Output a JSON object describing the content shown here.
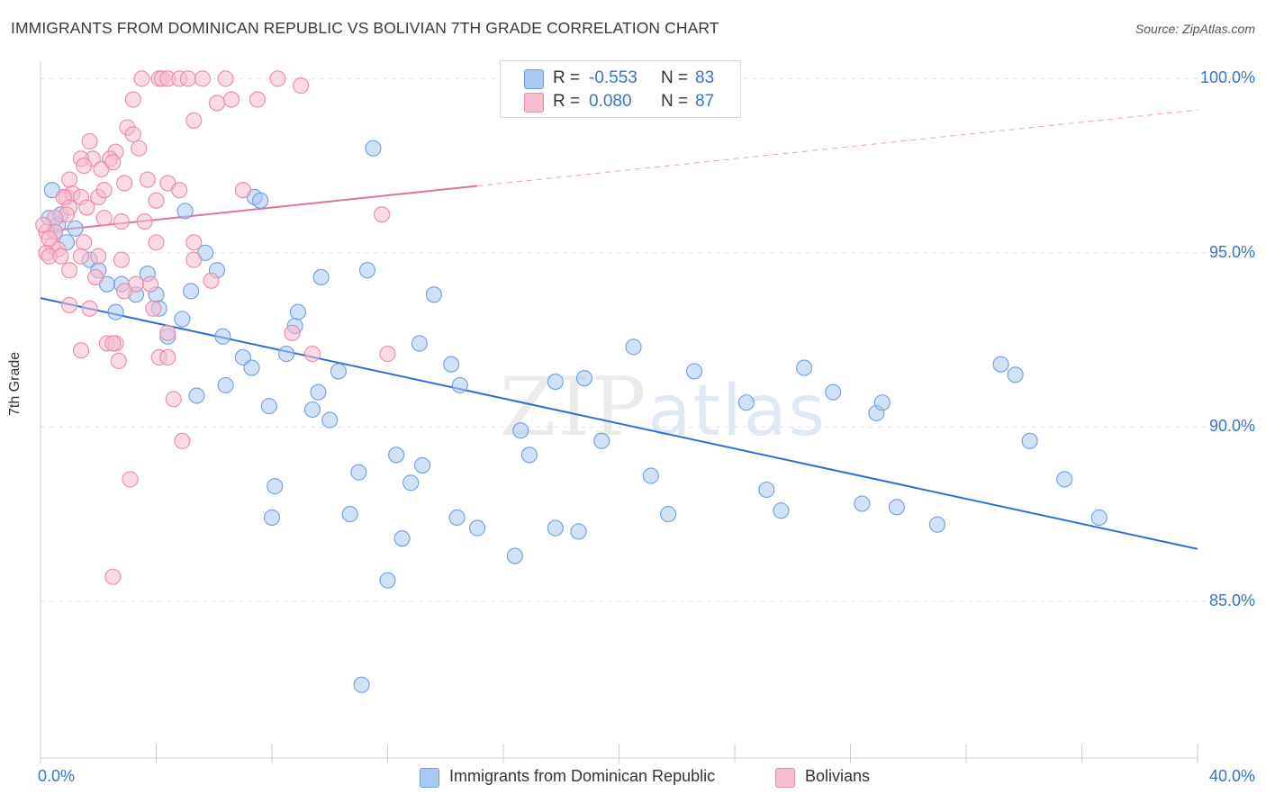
{
  "header": {
    "title": "IMMIGRANTS FROM DOMINICAN REPUBLIC VS BOLIVIAN 7TH GRADE CORRELATION CHART",
    "source": "Source: ZipAtlas.com"
  },
  "watermark": {
    "zip": "ZIP",
    "atlas": "atlas"
  },
  "legend": {
    "rows": [
      {
        "r_label": "R =",
        "r_value": "-0.553",
        "n_label": "N =",
        "n_value": "83",
        "color": "#a9c8f2",
        "stroke": "#6f9fdc"
      },
      {
        "r_label": "R =",
        "r_value": "0.080",
        "n_label": "N =",
        "n_value": "87",
        "color": "#f7bcd0",
        "stroke": "#e88aa9"
      }
    ],
    "bottom": [
      {
        "label": "Immigrants from Dominican Republic",
        "color": "#a9c8f2",
        "stroke": "#6f9fdc"
      },
      {
        "label": "Bolivians",
        "color": "#f7bcd0",
        "stroke": "#e88aa9"
      }
    ]
  },
  "chart_data": {
    "type": "scatter",
    "title": "IMMIGRANTS FROM DOMINICAN REPUBLIC VS BOLIVIAN 7TH GRADE CORRELATION CHART",
    "xlabel": "",
    "ylabel": "7th Grade",
    "xlim": [
      0,
      40
    ],
    "ylim": [
      80.5,
      100.5
    ],
    "x_tick_labels": [
      "0.0%",
      "40.0%"
    ],
    "y_ticks": [
      85,
      90,
      95,
      100
    ],
    "y_tick_labels": [
      "85.0%",
      "90.0%",
      "95.0%",
      "100.0%"
    ],
    "grid": true,
    "legend_position": "top-center",
    "series": [
      {
        "name": "Immigrants from Dominican Republic",
        "color": "#6f9fdc",
        "fill": "#a9c8f2",
        "trend": {
          "x": [
            0,
            40
          ],
          "y": [
            93.7,
            86.5
          ],
          "style": "solid"
        },
        "points": [
          [
            0.4,
            96.8
          ],
          [
            0.3,
            96.0
          ],
          [
            0.6,
            95.8
          ],
          [
            0.7,
            96.1
          ],
          [
            1.2,
            95.7
          ],
          [
            0.9,
            95.3
          ],
          [
            1.7,
            94.8
          ],
          [
            2.0,
            94.5
          ],
          [
            2.3,
            94.1
          ],
          [
            3.7,
            94.4
          ],
          [
            2.8,
            94.1
          ],
          [
            3.3,
            93.8
          ],
          [
            4.0,
            93.8
          ],
          [
            2.6,
            93.3
          ],
          [
            4.1,
            93.4
          ],
          [
            4.9,
            93.1
          ],
          [
            4.4,
            92.6
          ],
          [
            5.7,
            95.0
          ],
          [
            5.0,
            96.2
          ],
          [
            6.1,
            94.5
          ],
          [
            5.2,
            93.9
          ],
          [
            6.3,
            92.6
          ],
          [
            7.0,
            92.0
          ],
          [
            7.3,
            91.7
          ],
          [
            6.4,
            91.2
          ],
          [
            5.4,
            90.9
          ],
          [
            7.9,
            90.6
          ],
          [
            7.4,
            96.6
          ],
          [
            7.6,
            96.5
          ],
          [
            9.7,
            94.3
          ],
          [
            8.9,
            93.3
          ],
          [
            8.8,
            92.9
          ],
          [
            8.5,
            92.1
          ],
          [
            10.3,
            91.6
          ],
          [
            9.6,
            91.0
          ],
          [
            9.4,
            90.5
          ],
          [
            10.0,
            90.2
          ],
          [
            11.5,
            98.0
          ],
          [
            11.3,
            94.5
          ],
          [
            13.6,
            93.8
          ],
          [
            13.1,
            92.4
          ],
          [
            14.2,
            91.8
          ],
          [
            14.5,
            91.2
          ],
          [
            8.1,
            88.3
          ],
          [
            8.0,
            87.4
          ],
          [
            11.0,
            88.7
          ],
          [
            10.7,
            87.5
          ],
          [
            12.3,
            89.2
          ],
          [
            13.2,
            88.9
          ],
          [
            12.8,
            88.4
          ],
          [
            12.5,
            86.8
          ],
          [
            12.0,
            85.6
          ],
          [
            11.1,
            82.6
          ],
          [
            14.4,
            87.4
          ],
          [
            15.1,
            87.1
          ],
          [
            16.4,
            86.3
          ],
          [
            16.6,
            89.9
          ],
          [
            16.9,
            89.2
          ],
          [
            17.8,
            91.3
          ],
          [
            18.8,
            91.4
          ],
          [
            17.8,
            87.1
          ],
          [
            18.6,
            87.0
          ],
          [
            19.4,
            89.6
          ],
          [
            20.5,
            92.3
          ],
          [
            21.1,
            88.6
          ],
          [
            21.7,
            87.5
          ],
          [
            22.6,
            91.6
          ],
          [
            24.4,
            90.7
          ],
          [
            25.1,
            88.2
          ],
          [
            25.6,
            87.6
          ],
          [
            26.4,
            91.7
          ],
          [
            27.4,
            91.0
          ],
          [
            28.4,
            87.8
          ],
          [
            28.9,
            90.4
          ],
          [
            29.1,
            90.7
          ],
          [
            29.6,
            87.7
          ],
          [
            31.0,
            87.2
          ],
          [
            33.2,
            91.8
          ],
          [
            33.7,
            91.5
          ],
          [
            34.2,
            89.6
          ],
          [
            35.4,
            88.5
          ],
          [
            36.6,
            87.4
          ],
          [
            0.5,
            95.6
          ]
        ]
      },
      {
        "name": "Bolivians",
        "color": "#e88aa9",
        "fill": "#f7bcd0",
        "trend": {
          "x": [
            0,
            40
          ],
          "y": [
            95.6,
            99.1
          ],
          "style": "solid-then-dashed",
          "solid_until_x": 15.1
        },
        "points": [
          [
            3.5,
            100.0
          ],
          [
            4.1,
            100.0
          ],
          [
            4.2,
            100.0
          ],
          [
            4.4,
            100.0
          ],
          [
            4.8,
            100.0
          ],
          [
            5.1,
            100.0
          ],
          [
            5.6,
            100.0
          ],
          [
            6.4,
            100.0
          ],
          [
            8.2,
            100.0
          ],
          [
            9.0,
            99.8
          ],
          [
            3.2,
            99.4
          ],
          [
            6.1,
            99.3
          ],
          [
            6.6,
            99.4
          ],
          [
            7.5,
            99.4
          ],
          [
            5.3,
            98.8
          ],
          [
            3.0,
            98.6
          ],
          [
            3.2,
            98.4
          ],
          [
            1.7,
            98.2
          ],
          [
            3.4,
            98.0
          ],
          [
            2.6,
            97.9
          ],
          [
            1.8,
            97.7
          ],
          [
            1.4,
            97.7
          ],
          [
            2.4,
            97.7
          ],
          [
            2.1,
            97.4
          ],
          [
            2.5,
            97.6
          ],
          [
            1.5,
            97.5
          ],
          [
            1.0,
            97.1
          ],
          [
            3.7,
            97.1
          ],
          [
            4.4,
            97.0
          ],
          [
            2.9,
            97.0
          ],
          [
            7.0,
            96.8
          ],
          [
            4.8,
            96.8
          ],
          [
            0.9,
            96.6
          ],
          [
            2.0,
            96.6
          ],
          [
            1.1,
            96.7
          ],
          [
            1.4,
            96.6
          ],
          [
            0.8,
            96.6
          ],
          [
            2.2,
            96.8
          ],
          [
            4.0,
            96.5
          ],
          [
            1.0,
            96.3
          ],
          [
            1.6,
            96.3
          ],
          [
            0.9,
            96.1
          ],
          [
            0.5,
            96.0
          ],
          [
            2.2,
            96.0
          ],
          [
            2.8,
            95.9
          ],
          [
            3.6,
            95.9
          ],
          [
            11.8,
            96.1
          ],
          [
            0.2,
            95.6
          ],
          [
            0.5,
            95.6
          ],
          [
            1.5,
            95.3
          ],
          [
            4.0,
            95.3
          ],
          [
            5.3,
            95.3
          ],
          [
            0.4,
            95.2
          ],
          [
            0.6,
            95.1
          ],
          [
            0.2,
            95.0
          ],
          [
            0.3,
            94.9
          ],
          [
            0.7,
            94.9
          ],
          [
            1.4,
            94.9
          ],
          [
            2.0,
            94.9
          ],
          [
            2.8,
            94.8
          ],
          [
            5.3,
            94.8
          ],
          [
            5.9,
            94.2
          ],
          [
            1.0,
            94.5
          ],
          [
            1.9,
            94.3
          ],
          [
            3.3,
            94.1
          ],
          [
            3.8,
            94.1
          ],
          [
            2.9,
            93.9
          ],
          [
            1.0,
            93.5
          ],
          [
            1.7,
            93.4
          ],
          [
            3.9,
            93.4
          ],
          [
            4.4,
            92.7
          ],
          [
            8.7,
            92.7
          ],
          [
            2.3,
            92.4
          ],
          [
            2.6,
            92.4
          ],
          [
            2.5,
            92.4
          ],
          [
            1.4,
            92.2
          ],
          [
            12.0,
            92.1
          ],
          [
            9.4,
            92.1
          ],
          [
            4.1,
            92.0
          ],
          [
            4.4,
            92.0
          ],
          [
            2.7,
            91.9
          ],
          [
            4.6,
            90.8
          ],
          [
            4.9,
            89.6
          ],
          [
            3.1,
            88.5
          ],
          [
            2.5,
            85.7
          ],
          [
            0.1,
            95.8
          ],
          [
            0.3,
            95.4
          ]
        ]
      }
    ]
  }
}
